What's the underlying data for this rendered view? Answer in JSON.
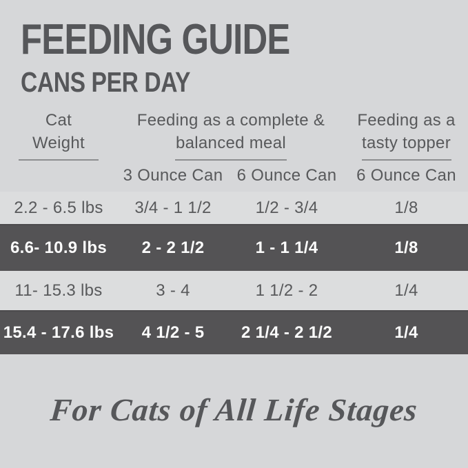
{
  "colors": {
    "background": "#d6d7d9",
    "light_row": "#dcddde",
    "dark_row": "#545355",
    "text": "#58595b",
    "text_on_dark": "#fcfcfc",
    "underline": "#8d8e90"
  },
  "chart_data": {
    "type": "table",
    "title": "FEEDING GUIDE",
    "subtitle": "CANS PER DAY",
    "column_groups": [
      {
        "line1": "Cat",
        "line2": "Weight"
      },
      {
        "line1": "Feeding as a complete &",
        "line2": "balanced meal"
      },
      {
        "line1": "Feeding as a",
        "line2": "tasty topper"
      }
    ],
    "sub_headers": [
      "",
      "3 Ounce Can",
      "6 Ounce Can",
      "6 Ounce Can"
    ],
    "rows": [
      {
        "cat_weight": "2.2 - 6.5 lbs",
        "meal_3oz": "3/4 - 1 1/2",
        "meal_6oz": "1/2 - 3/4",
        "topper_6oz": "1/8"
      },
      {
        "cat_weight": "6.6- 10.9 lbs",
        "meal_3oz": "2 - 2 1/2",
        "meal_6oz": "1 - 1 1/4",
        "topper_6oz": "1/8"
      },
      {
        "cat_weight": "11- 15.3 lbs",
        "meal_3oz": "3 - 4",
        "meal_6oz": "1 1/2 - 2",
        "topper_6oz": "1/4"
      },
      {
        "cat_weight": "15.4 - 17.6 lbs",
        "meal_3oz": "4 1/2 - 5",
        "meal_6oz": "2 1/4 - 2 1/2",
        "topper_6oz": "1/4"
      }
    ],
    "footer": "For Cats of All Life Stages"
  }
}
